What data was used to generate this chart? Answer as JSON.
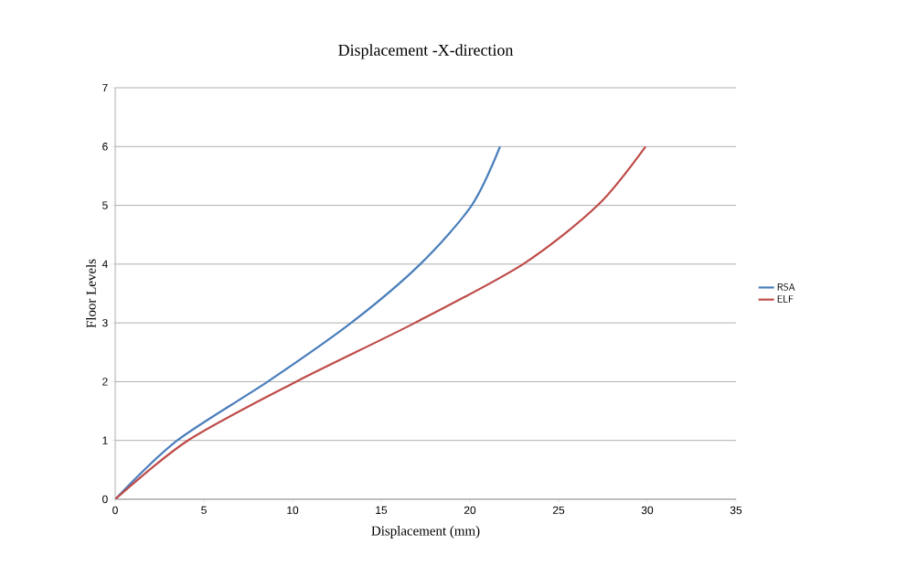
{
  "chart_data": {
    "type": "line",
    "title": "Displacement  -X-direction",
    "xlabel": "Displacement (mm)",
    "ylabel": "Floor Levels",
    "xlim": [
      0,
      35
    ],
    "xticks": [
      0,
      5,
      10,
      15,
      20,
      25,
      30,
      35
    ],
    "ylim": [
      0,
      7
    ],
    "yticks": [
      0,
      1,
      2,
      3,
      4,
      5,
      6,
      7
    ],
    "grid": "y",
    "legend": "right",
    "marker": "none",
    "series": [
      {
        "name": "RSA",
        "color": "#4a7ebb",
        "x": [
          0,
          3.5,
          8.6,
          13.3,
          17.2,
          20.1,
          21.7
        ],
        "values": [
          0,
          1,
          2,
          3,
          4,
          5,
          6
        ]
      },
      {
        "name": "ELF",
        "color": "#be4b48",
        "x": [
          0,
          4.1,
          10.2,
          16.9,
          23.0,
          27.2,
          29.9
        ],
        "values": [
          0,
          1,
          2,
          3,
          4,
          5,
          6
        ]
      }
    ]
  }
}
